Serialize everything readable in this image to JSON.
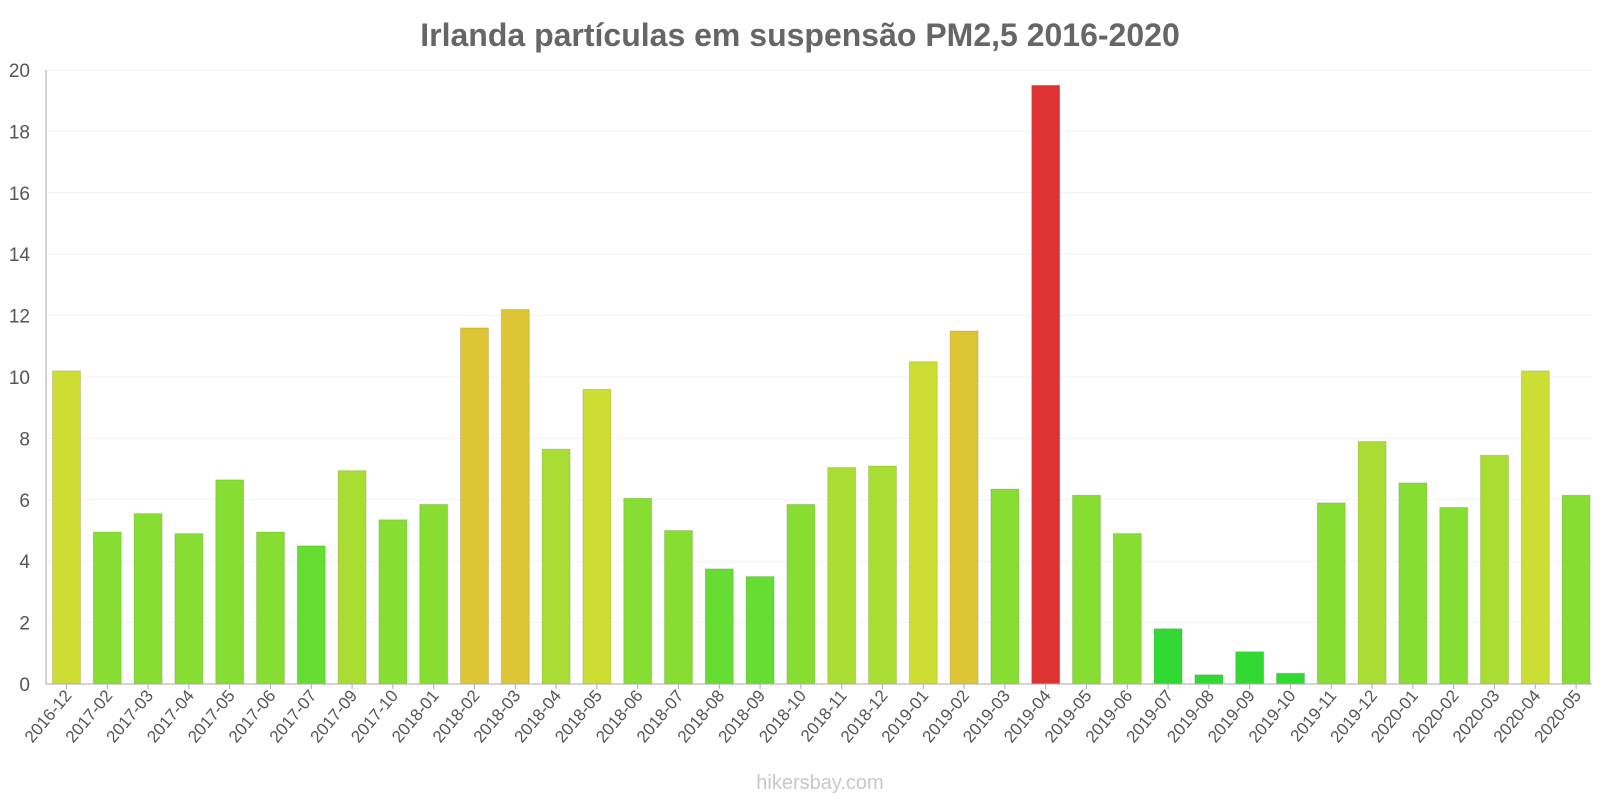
{
  "chart_data": {
    "type": "bar",
    "title": "Irlanda partículas em suspensão PM2,5 2016-2020",
    "xlabel": "",
    "ylabel": "",
    "ylim": [
      0,
      20
    ],
    "yticks": [
      0,
      2,
      4,
      6,
      8,
      10,
      12,
      14,
      16,
      18,
      20
    ],
    "grid": true,
    "categories": [
      "2016-12",
      "2017-02",
      "2017-03",
      "2017-04",
      "2017-05",
      "2017-06",
      "2017-07",
      "2017-09",
      "2017-10",
      "2018-01",
      "2018-02",
      "2018-03",
      "2018-04",
      "2018-05",
      "2018-06",
      "2018-07",
      "2018-08",
      "2018-09",
      "2018-10",
      "2018-11",
      "2018-12",
      "2019-01",
      "2019-02",
      "2019-03",
      "2019-04",
      "2019-05",
      "2019-06",
      "2019-07",
      "2019-08",
      "2019-09",
      "2019-10",
      "2019-11",
      "2019-12",
      "2020-01",
      "2020-02",
      "2020-03",
      "2020-04",
      "2020-05"
    ],
    "values": [
      10.2,
      4.95,
      5.55,
      4.9,
      6.65,
      4.95,
      4.5,
      6.95,
      5.35,
      5.85,
      11.6,
      12.2,
      7.65,
      9.6,
      6.05,
      5.0,
      3.75,
      3.5,
      5.85,
      7.05,
      7.1,
      10.5,
      11.5,
      6.35,
      19.5,
      6.15,
      4.9,
      1.8,
      0.3,
      1.05,
      0.35,
      5.9,
      7.9,
      6.55,
      5.75,
      7.45,
      10.2,
      6.15
    ]
  },
  "colors": {
    "very_low": "#33d933",
    "low": "#66dd33",
    "moderate_low": "#88dd33",
    "moderate": "#aadd33",
    "elevated": "#ccdd33",
    "high": "#ddc533",
    "very_high": "#dd3333",
    "title": "#666666",
    "tick": "#555555"
  },
  "credit": "hikersbay.com"
}
